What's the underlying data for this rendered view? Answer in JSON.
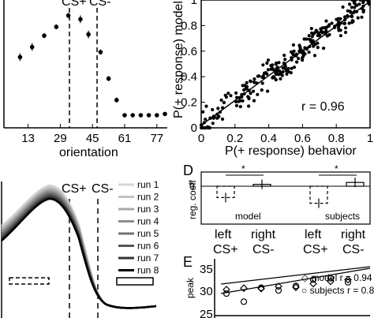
{
  "chart_data": [
    {
      "panel": "top-left",
      "type": "scatter",
      "xlabel": "orientation",
      "xticks": [
        "13",
        "29",
        "45",
        "61",
        "77"
      ],
      "markers": [
        "CS+",
        "CS-"
      ],
      "points": [
        {
          "x": 15,
          "y": 0.56,
          "err": 0.03
        },
        {
          "x": 21,
          "y": 0.64,
          "err": 0.03
        },
        {
          "x": 27,
          "y": 0.73,
          "err": 0.02
        },
        {
          "x": 33,
          "y": 0.8,
          "err": 0.02
        },
        {
          "x": 39,
          "y": 0.89,
          "err": 0.02
        },
        {
          "x": 45,
          "y": 0.86,
          "err": 0.03
        },
        {
          "x": 49,
          "y": 0.74,
          "err": 0.03
        },
        {
          "x": 55,
          "y": 0.6,
          "err": 0.02
        },
        {
          "x": 59,
          "y": 0.39,
          "err": 0.02
        },
        {
          "x": 63,
          "y": 0.22,
          "err": 0.02
        },
        {
          "x": 67,
          "y": 0.1,
          "err": 0.01
        },
        {
          "x": 71,
          "y": 0.1,
          "err": 0.01
        },
        {
          "x": 75,
          "y": 0.1,
          "err": 0.01
        },
        {
          "x": 79,
          "y": 0.1,
          "err": 0.01
        },
        {
          "x": 83,
          "y": 0.1,
          "err": 0.01
        },
        {
          "x": 87,
          "y": 0.11,
          "err": 0.01
        }
      ]
    },
    {
      "panel": "top-right",
      "type": "scatter",
      "xlabel": "P(+ response) behavior",
      "ylabel": "P(+ response) model",
      "xticks": [
        "0",
        "0.2",
        "0.4",
        "0.6",
        "0.8",
        "1"
      ],
      "yticks": [
        "0",
        "0.2",
        "0.4",
        "0.6",
        "0.8",
        "1"
      ],
      "xlim": [
        0,
        1
      ],
      "ylim": [
        0,
        1
      ],
      "annotation": "r = 0.96",
      "fit": {
        "slope": 0.97,
        "intercept": 0.02
      }
    },
    {
      "panel": "bottom-left",
      "type": "line",
      "markers": [
        "CS+",
        "CS-"
      ],
      "series": [
        {
          "name": "run 1",
          "color": "#d6d6d6",
          "peak": 0.9
        },
        {
          "name": "run 2",
          "color": "#c2c2c2",
          "peak": 0.88
        },
        {
          "name": "run 3",
          "color": "#a9a9a9",
          "peak": 0.86
        },
        {
          "name": "run 4",
          "color": "#8e8e8e",
          "peak": 0.84
        },
        {
          "name": "run 5",
          "color": "#737373",
          "peak": 0.82
        },
        {
          "name": "run 6",
          "color": "#555555",
          "peak": 0.8
        },
        {
          "name": "run 7",
          "color": "#333333",
          "peak": 0.8
        },
        {
          "name": "run 8",
          "color": "#000000",
          "peak": 0.8
        }
      ]
    },
    {
      "panel": "D",
      "type": "bar",
      "ylabel": "reg. coeff",
      "yticks": [
        "0"
      ],
      "categories": [
        "left CS+",
        "right CS-",
        "left CS+",
        "right CS-"
      ],
      "group_labels": [
        "model",
        "subjects"
      ],
      "significance": [
        "*",
        "*"
      ],
      "values": [
        -0.6,
        0.1,
        -0.9,
        0.2
      ]
    },
    {
      "panel": "E",
      "type": "scatter",
      "ylabel": "peak",
      "yticks": [
        "35",
        "30",
        "25"
      ],
      "legend": [
        "model r = 0.94",
        "subjects r = 0.8"
      ],
      "model": [
        30.8,
        31.1,
        31.0,
        31.5,
        31.3,
        32.1,
        32.6,
        33.0
      ],
      "subjects": [
        29.9,
        28.1,
        31.2,
        30.6,
        31.6,
        33.0,
        33.3,
        32.4
      ]
    }
  ],
  "labels": {
    "panel_d": "D",
    "panel_e": "E",
    "cs_plus": "CS+",
    "cs_minus": "CS-"
  }
}
